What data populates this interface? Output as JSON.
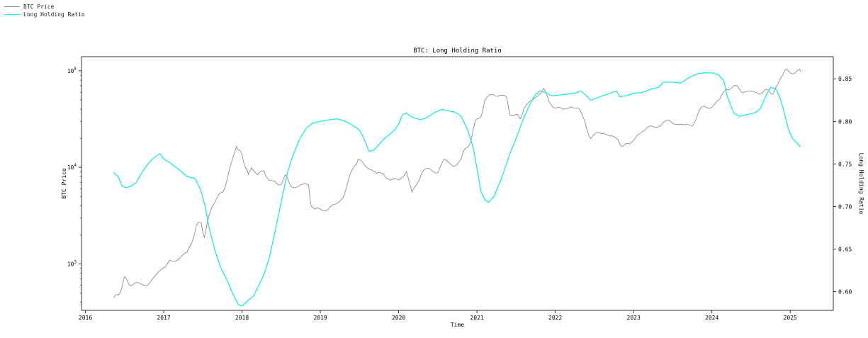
{
  "chart_data": {
    "type": "line",
    "title": "BTC: Long Holding Ratio",
    "xlabel": "Time",
    "ylabel_left": "BTC Price",
    "ylabel_right": "Long Holding Ratio",
    "x_ticks": [
      "2016",
      "2017",
      "2018",
      "2019",
      "2020",
      "2021",
      "2022",
      "2023",
      "2024",
      "2025"
    ],
    "xlim": [
      2015.95,
      2025.55
    ],
    "y_left_scale": "log",
    "y_left_lim": [
      330,
      140000
    ],
    "y_left_ticks": [
      {
        "value": 1000,
        "base": "10",
        "exp": "3"
      },
      {
        "value": 10000,
        "base": "10",
        "exp": "4"
      },
      {
        "value": 100000,
        "base": "10",
        "exp": "5"
      }
    ],
    "y_right_lim": [
      0.578,
      0.876
    ],
    "y_right_ticks": [
      "0.60",
      "0.65",
      "0.70",
      "0.75",
      "0.80",
      "0.85"
    ],
    "grid": false,
    "legend_position": "top-left",
    "series": [
      {
        "name": "BTC Price",
        "axis": "left",
        "color": "#808080",
        "points": [
          [
            2016.36,
            445
          ],
          [
            2016.42,
            460
          ],
          [
            2016.46,
            580
          ],
          [
            2016.5,
            700
          ],
          [
            2016.55,
            650
          ],
          [
            2016.6,
            600
          ],
          [
            2016.7,
            610
          ],
          [
            2016.8,
            640
          ],
          [
            2016.9,
            720
          ],
          [
            2017.0,
            960
          ],
          [
            2017.05,
            1000
          ],
          [
            2017.1,
            1050
          ],
          [
            2017.2,
            1200
          ],
          [
            2017.3,
            1250
          ],
          [
            2017.36,
            1750
          ],
          [
            2017.42,
            2500
          ],
          [
            2017.48,
            2600
          ],
          [
            2017.52,
            1950
          ],
          [
            2017.57,
            2800
          ],
          [
            2017.62,
            4200
          ],
          [
            2017.68,
            4700
          ],
          [
            2017.75,
            5500
          ],
          [
            2017.8,
            7200
          ],
          [
            2017.87,
            11000
          ],
          [
            2017.93,
            17500
          ],
          [
            2017.96,
            14500
          ],
          [
            2018.0,
            13500
          ],
          [
            2018.05,
            10000
          ],
          [
            2018.08,
            8000
          ],
          [
            2018.12,
            10500
          ],
          [
            2018.2,
            8000
          ],
          [
            2018.28,
            9300
          ],
          [
            2018.35,
            7500
          ],
          [
            2018.45,
            6400
          ],
          [
            2018.5,
            7000
          ],
          [
            2018.55,
            8000
          ],
          [
            2018.62,
            6500
          ],
          [
            2018.72,
            6500
          ],
          [
            2018.85,
            6300
          ],
          [
            2018.88,
            4300
          ],
          [
            2018.93,
            3500
          ],
          [
            2019.0,
            3800
          ],
          [
            2019.1,
            3700
          ],
          [
            2019.2,
            4000
          ],
          [
            2019.3,
            5300
          ],
          [
            2019.38,
            8000
          ],
          [
            2019.45,
            11000
          ],
          [
            2019.48,
            12000
          ],
          [
            2019.55,
            10500
          ],
          [
            2019.65,
            10000
          ],
          [
            2019.72,
            8200
          ],
          [
            2019.8,
            9000
          ],
          [
            2019.9,
            7300
          ],
          [
            2020.0,
            7200
          ],
          [
            2020.1,
            9500
          ],
          [
            2020.17,
            5200
          ],
          [
            2020.22,
            6800
          ],
          [
            2020.3,
            8800
          ],
          [
            2020.4,
            9500
          ],
          [
            2020.5,
            9200
          ],
          [
            2020.58,
            11500
          ],
          [
            2020.7,
            10700
          ],
          [
            2020.8,
            12000
          ],
          [
            2020.85,
            15500
          ],
          [
            2020.92,
            19000
          ],
          [
            2020.98,
            29000
          ],
          [
            2021.05,
            35000
          ],
          [
            2021.1,
            48000
          ],
          [
            2021.2,
            57000
          ],
          [
            2021.3,
            58000
          ],
          [
            2021.38,
            50000
          ],
          [
            2021.42,
            37000
          ],
          [
            2021.5,
            34000
          ],
          [
            2021.55,
            32000
          ],
          [
            2021.6,
            42000
          ],
          [
            2021.7,
            47000
          ],
          [
            2021.8,
            61000
          ],
          [
            2021.85,
            63000
          ],
          [
            2021.92,
            49000
          ],
          [
            2022.0,
            42000
          ],
          [
            2022.1,
            38000
          ],
          [
            2022.2,
            45000
          ],
          [
            2022.3,
            39000
          ],
          [
            2022.38,
            30000
          ],
          [
            2022.45,
            20000
          ],
          [
            2022.55,
            22000
          ],
          [
            2022.62,
            24000
          ],
          [
            2022.7,
            20000
          ],
          [
            2022.8,
            20000
          ],
          [
            2022.86,
            16500
          ],
          [
            2022.95,
            16800
          ],
          [
            2023.05,
            23000
          ],
          [
            2023.15,
            23000
          ],
          [
            2023.22,
            28000
          ],
          [
            2023.35,
            27000
          ],
          [
            2023.45,
            30000
          ],
          [
            2023.55,
            29500
          ],
          [
            2023.65,
            26000
          ],
          [
            2023.75,
            28000
          ],
          [
            2023.83,
            37000
          ],
          [
            2023.9,
            42000
          ],
          [
            2024.0,
            44000
          ],
          [
            2024.1,
            48000
          ],
          [
            2024.18,
            68000
          ],
          [
            2024.25,
            65000
          ],
          [
            2024.33,
            68000
          ],
          [
            2024.4,
            62000
          ],
          [
            2024.5,
            58000
          ],
          [
            2024.58,
            62000
          ],
          [
            2024.65,
            58000
          ],
          [
            2024.72,
            63000
          ],
          [
            2024.78,
            60000
          ],
          [
            2024.85,
            70000
          ],
          [
            2024.88,
            90000
          ],
          [
            2024.93,
            98000
          ],
          [
            2025.0,
            95000
          ],
          [
            2025.08,
            102000
          ],
          [
            2025.13,
            97000
          ]
        ]
      },
      {
        "name": "Long Holding Ratio",
        "axis": "right",
        "color": "#1ee8e0",
        "points": [
          [
            2016.36,
            0.74
          ],
          [
            2016.42,
            0.735
          ],
          [
            2016.47,
            0.724
          ],
          [
            2016.52,
            0.722
          ],
          [
            2016.58,
            0.724
          ],
          [
            2016.65,
            0.728
          ],
          [
            2016.72,
            0.74
          ],
          [
            2016.8,
            0.75
          ],
          [
            2016.88,
            0.758
          ],
          [
            2016.95,
            0.762
          ],
          [
            2017.0,
            0.756
          ],
          [
            2017.1,
            0.75
          ],
          [
            2017.2,
            0.743
          ],
          [
            2017.3,
            0.735
          ],
          [
            2017.4,
            0.733
          ],
          [
            2017.47,
            0.72
          ],
          [
            2017.53,
            0.7
          ],
          [
            2017.58,
            0.675
          ],
          [
            2017.65,
            0.65
          ],
          [
            2017.72,
            0.63
          ],
          [
            2017.8,
            0.615
          ],
          [
            2017.87,
            0.6
          ],
          [
            2017.95,
            0.585
          ],
          [
            2018.0,
            0.583
          ],
          [
            2018.08,
            0.59
          ],
          [
            2018.15,
            0.595
          ],
          [
            2018.2,
            0.605
          ],
          [
            2018.28,
            0.62
          ],
          [
            2018.35,
            0.64
          ],
          [
            2018.42,
            0.67
          ],
          [
            2018.5,
            0.705
          ],
          [
            2018.58,
            0.74
          ],
          [
            2018.65,
            0.76
          ],
          [
            2018.73,
            0.778
          ],
          [
            2018.82,
            0.792
          ],
          [
            2018.9,
            0.798
          ],
          [
            2019.0,
            0.8
          ],
          [
            2019.12,
            0.802
          ],
          [
            2019.22,
            0.803
          ],
          [
            2019.32,
            0.8
          ],
          [
            2019.42,
            0.795
          ],
          [
            2019.5,
            0.79
          ],
          [
            2019.58,
            0.775
          ],
          [
            2019.62,
            0.765
          ],
          [
            2019.68,
            0.766
          ],
          [
            2019.75,
            0.773
          ],
          [
            2019.82,
            0.78
          ],
          [
            2019.9,
            0.786
          ],
          [
            2019.95,
            0.79
          ],
          [
            2020.0,
            0.797
          ],
          [
            2020.05,
            0.808
          ],
          [
            2020.1,
            0.81
          ],
          [
            2020.15,
            0.806
          ],
          [
            2020.2,
            0.804
          ],
          [
            2020.28,
            0.802
          ],
          [
            2020.35,
            0.804
          ],
          [
            2020.45,
            0.81
          ],
          [
            2020.55,
            0.814
          ],
          [
            2020.65,
            0.812
          ],
          [
            2020.72,
            0.811
          ],
          [
            2020.8,
            0.806
          ],
          [
            2020.88,
            0.79
          ],
          [
            2020.95,
            0.77
          ],
          [
            2021.0,
            0.745
          ],
          [
            2021.05,
            0.718
          ],
          [
            2021.1,
            0.708
          ],
          [
            2021.15,
            0.705
          ],
          [
            2021.22,
            0.712
          ],
          [
            2021.32,
            0.735
          ],
          [
            2021.42,
            0.762
          ],
          [
            2021.5,
            0.78
          ],
          [
            2021.58,
            0.8
          ],
          [
            2021.65,
            0.815
          ],
          [
            2021.72,
            0.828
          ],
          [
            2021.8,
            0.836
          ],
          [
            2021.88,
            0.834
          ],
          [
            2021.95,
            0.83
          ],
          [
            2022.05,
            0.831
          ],
          [
            2022.15,
            0.832
          ],
          [
            2022.25,
            0.833
          ],
          [
            2022.32,
            0.836
          ],
          [
            2022.4,
            0.83
          ],
          [
            2022.45,
            0.825
          ],
          [
            2022.52,
            0.827
          ],
          [
            2022.6,
            0.83
          ],
          [
            2022.7,
            0.833
          ],
          [
            2022.78,
            0.836
          ],
          [
            2022.82,
            0.829
          ],
          [
            2022.9,
            0.83
          ],
          [
            2023.0,
            0.833
          ],
          [
            2023.12,
            0.834
          ],
          [
            2023.22,
            0.838
          ],
          [
            2023.32,
            0.84
          ],
          [
            2023.38,
            0.846
          ],
          [
            2023.5,
            0.846
          ],
          [
            2023.6,
            0.845
          ],
          [
            2023.72,
            0.852
          ],
          [
            2023.82,
            0.856
          ],
          [
            2023.9,
            0.857
          ],
          [
            2024.0,
            0.857
          ],
          [
            2024.08,
            0.855
          ],
          [
            2024.15,
            0.848
          ],
          [
            2024.2,
            0.828
          ],
          [
            2024.28,
            0.81
          ],
          [
            2024.35,
            0.806
          ],
          [
            2024.45,
            0.808
          ],
          [
            2024.55,
            0.81
          ],
          [
            2024.62,
            0.815
          ],
          [
            2024.7,
            0.832
          ],
          [
            2024.75,
            0.84
          ],
          [
            2024.82,
            0.838
          ],
          [
            2024.88,
            0.825
          ],
          [
            2024.93,
            0.808
          ],
          [
            2024.98,
            0.79
          ],
          [
            2025.03,
            0.78
          ],
          [
            2025.08,
            0.775
          ],
          [
            2025.13,
            0.77
          ]
        ]
      }
    ]
  }
}
